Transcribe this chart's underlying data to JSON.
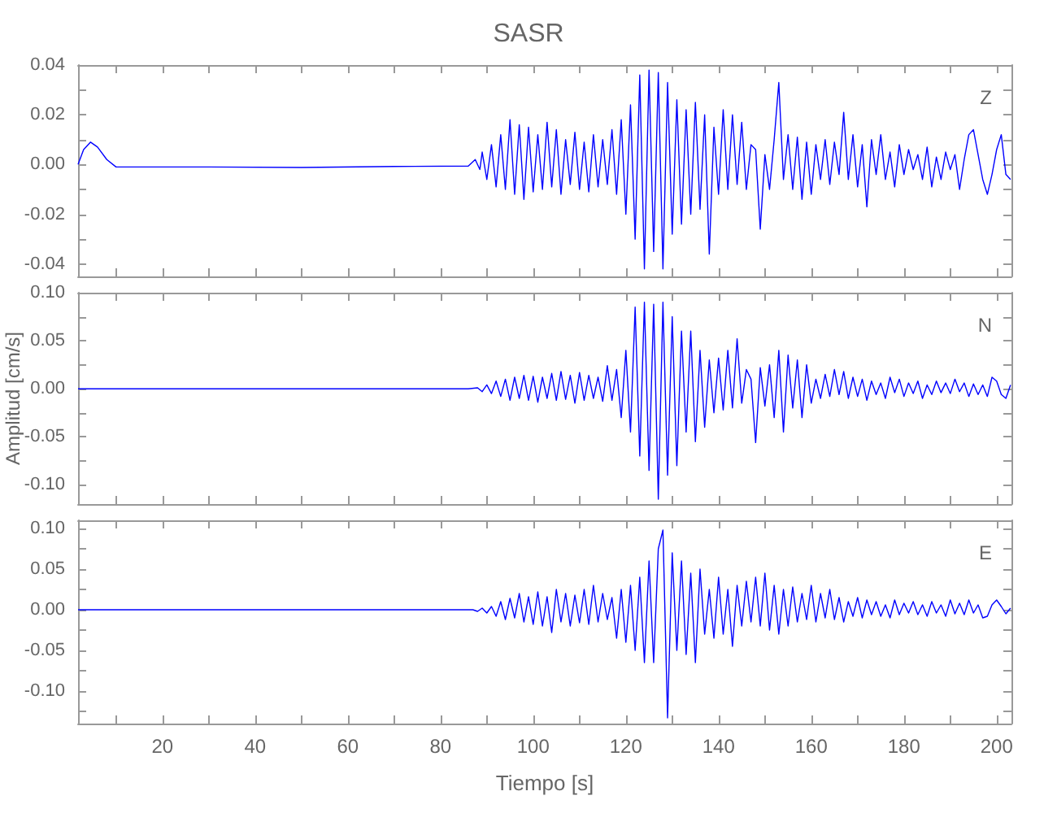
{
  "chart_data": [
    {
      "type": "line",
      "title": "SASR",
      "annotations": [
        "Z"
      ],
      "marker": "none",
      "tick_labels": "y",
      "xlim": [
        1.8,
        203.2
      ],
      "ylim": [
        -0.045,
        0.04
      ],
      "xticks": [
        {
          "value": 10,
          "label": null
        },
        {
          "value": 20,
          "label": null
        },
        {
          "value": 30,
          "label": null
        },
        {
          "value": 40,
          "label": null
        },
        {
          "value": 50,
          "label": null
        },
        {
          "value": 60,
          "label": null
        },
        {
          "value": 70,
          "label": null
        },
        {
          "value": 80,
          "label": null
        },
        {
          "value": 90,
          "label": null
        },
        {
          "value": 100,
          "label": null
        },
        {
          "value": 110,
          "label": null
        },
        {
          "value": 120,
          "label": null
        },
        {
          "value": 130,
          "label": null
        },
        {
          "value": 140,
          "label": null
        },
        {
          "value": 150,
          "label": null
        },
        {
          "value": 160,
          "label": null
        },
        {
          "value": 170,
          "label": null
        },
        {
          "value": 180,
          "label": null
        },
        {
          "value": 190,
          "label": null
        },
        {
          "value": 200,
          "label": null
        }
      ],
      "yticks": [
        {
          "value": -0.04,
          "label": "-0.04"
        },
        {
          "value": -0.03,
          "label": null
        },
        {
          "value": -0.02,
          "label": "-0.02"
        },
        {
          "value": -0.01,
          "label": null
        },
        {
          "value": 0,
          "label": "0.00"
        },
        {
          "value": 0.01,
          "label": null
        },
        {
          "value": 0.02,
          "label": "0.02"
        },
        {
          "value": 0.03,
          "label": null
        },
        {
          "value": 0.04,
          "label": "0.04"
        }
      ],
      "series": [
        {
          "color": "#0000ff",
          "x": [
            1.8,
            3,
            4.5,
            6,
            8,
            10,
            30,
            50,
            70,
            86,
            87.5,
            88.5,
            89,
            90,
            91,
            92,
            93,
            94,
            95,
            96,
            97,
            98,
            99,
            100,
            101,
            102,
            103,
            104,
            105,
            106,
            107,
            108,
            109,
            110,
            111,
            112,
            113,
            114,
            115,
            116,
            117,
            118,
            119,
            120,
            121,
            122,
            123,
            124,
            125,
            126,
            127,
            128,
            129,
            130,
            131,
            132,
            133,
            134,
            135,
            136,
            137,
            138,
            139,
            140,
            141,
            142,
            143,
            144,
            145,
            146,
            147,
            148,
            149,
            150,
            151,
            152,
            153,
            154,
            155,
            156,
            157,
            158,
            159,
            160,
            161,
            162,
            163,
            164,
            165,
            166,
            167,
            168,
            169,
            170,
            171,
            172,
            173,
            174,
            175,
            176,
            177,
            178,
            179,
            180,
            181,
            182,
            183,
            184,
            185,
            186,
            187,
            188,
            189,
            190,
            191,
            192,
            193,
            194,
            195,
            196,
            197,
            198,
            199,
            200,
            201,
            202,
            203
          ],
          "values": [
            0,
            0.006,
            0.009,
            0.007,
            0.002,
            -0.001,
            -0.001,
            -0.0012,
            -0.0008,
            -0.0006,
            0.002,
            -0.002,
            0.005,
            -0.006,
            0.008,
            -0.009,
            0.012,
            -0.01,
            0.018,
            -0.012,
            0.016,
            -0.014,
            0.015,
            -0.011,
            0.012,
            -0.01,
            0.017,
            -0.009,
            0.014,
            -0.012,
            0.01,
            -0.008,
            0.013,
            -0.01,
            0.009,
            -0.011,
            0.012,
            -0.009,
            0.01,
            -0.008,
            0.014,
            -0.012,
            0.018,
            -0.02,
            0.024,
            -0.03,
            0.036,
            -0.042,
            0.038,
            -0.035,
            0.037,
            -0.042,
            0.033,
            -0.028,
            0.026,
            -0.024,
            0.022,
            -0.02,
            0.025,
            -0.018,
            0.02,
            -0.036,
            0.015,
            -0.012,
            0.022,
            -0.01,
            0.02,
            -0.008,
            0.017,
            -0.01,
            0.008,
            0.006,
            -0.026,
            0.004,
            -0.01,
            0.01,
            0.033,
            -0.006,
            0.012,
            -0.01,
            0.011,
            -0.014,
            0.009,
            -0.012,
            0.008,
            -0.006,
            0.01,
            -0.008,
            0.009,
            -0.004,
            0.021,
            -0.006,
            0.012,
            -0.009,
            0.008,
            -0.017,
            0.01,
            -0.004,
            0.012,
            -0.006,
            0.005,
            -0.009,
            0.008,
            -0.004,
            0.006,
            -0.002,
            0.004,
            -0.006,
            0.007,
            -0.009,
            0.003,
            -0.006,
            0.005,
            -0.002,
            0.004,
            -0.01,
            0.002,
            0.012,
            0.014,
            0.004,
            -0.006,
            -0.012,
            -0.004,
            0.006,
            0.012,
            -0.004,
            -0.006
          ]
        }
      ]
    },
    {
      "type": "line",
      "ylabel": "Amplitud [cm/s]",
      "annotations": [
        "N"
      ],
      "marker": "none",
      "tick_labels": "y",
      "xlim": [
        1.8,
        203.2
      ],
      "ylim": [
        -0.12,
        0.1
      ],
      "xticks": [
        {
          "value": 10,
          "label": null
        },
        {
          "value": 20,
          "label": null
        },
        {
          "value": 30,
          "label": null
        },
        {
          "value": 40,
          "label": null
        },
        {
          "value": 50,
          "label": null
        },
        {
          "value": 60,
          "label": null
        },
        {
          "value": 70,
          "label": null
        },
        {
          "value": 80,
          "label": null
        },
        {
          "value": 90,
          "label": null
        },
        {
          "value": 100,
          "label": null
        },
        {
          "value": 110,
          "label": null
        },
        {
          "value": 120,
          "label": null
        },
        {
          "value": 130,
          "label": null
        },
        {
          "value": 140,
          "label": null
        },
        {
          "value": 150,
          "label": null
        },
        {
          "value": 160,
          "label": null
        },
        {
          "value": 170,
          "label": null
        },
        {
          "value": 180,
          "label": null
        },
        {
          "value": 190,
          "label": null
        },
        {
          "value": 200,
          "label": null
        }
      ],
      "yticks": [
        {
          "value": -0.1,
          "label": "-0.10"
        },
        {
          "value": -0.075,
          "label": null
        },
        {
          "value": -0.05,
          "label": "-0.05"
        },
        {
          "value": -0.025,
          "label": null
        },
        {
          "value": 0,
          "label": "0.00"
        },
        {
          "value": 0.025,
          "label": null
        },
        {
          "value": 0.05,
          "label": "0.05"
        },
        {
          "value": 0.075,
          "label": null
        },
        {
          "value": 0.1,
          "label": "0.10"
        }
      ],
      "series": [
        {
          "color": "#0000ff",
          "x": [
            1.8,
            30,
            60,
            86,
            88,
            89,
            90,
            91,
            92,
            93,
            94,
            95,
            96,
            97,
            98,
            99,
            100,
            101,
            102,
            103,
            104,
            105,
            106,
            107,
            108,
            109,
            110,
            111,
            112,
            113,
            114,
            115,
            116,
            117,
            118,
            119,
            120,
            121,
            122,
            123,
            124,
            125,
            126,
            127,
            128,
            129,
            130,
            131,
            132,
            133,
            134,
            135,
            136,
            137,
            138,
            139,
            140,
            141,
            142,
            143,
            144,
            145,
            146,
            147,
            148,
            149,
            150,
            151,
            152,
            153,
            154,
            155,
            156,
            157,
            158,
            159,
            160,
            161,
            162,
            163,
            164,
            165,
            166,
            167,
            168,
            169,
            170,
            171,
            172,
            173,
            174,
            175,
            176,
            177,
            178,
            179,
            180,
            181,
            182,
            183,
            184,
            185,
            186,
            187,
            188,
            189,
            190,
            191,
            192,
            193,
            194,
            195,
            196,
            197,
            198,
            199,
            200,
            201,
            202,
            203
          ],
          "values": [
            0,
            0,
            0,
            0,
            0.001,
            -0.003,
            0.004,
            -0.005,
            0.008,
            -0.008,
            0.01,
            -0.012,
            0.012,
            -0.01,
            0.014,
            -0.012,
            0.013,
            -0.014,
            0.012,
            -0.01,
            0.016,
            -0.012,
            0.018,
            -0.011,
            0.014,
            -0.015,
            0.017,
            -0.012,
            0.014,
            -0.01,
            0.012,
            -0.013,
            0.024,
            -0.012,
            0.02,
            -0.03,
            0.04,
            -0.045,
            0.085,
            -0.07,
            0.09,
            -0.085,
            0.088,
            -0.115,
            0.09,
            -0.09,
            0.075,
            -0.08,
            0.06,
            -0.045,
            0.06,
            -0.055,
            0.04,
            -0.04,
            0.03,
            -0.025,
            0.032,
            -0.022,
            0.04,
            -0.02,
            0.052,
            -0.015,
            0.02,
            0.01,
            -0.056,
            0.022,
            -0.018,
            0.025,
            -0.03,
            0.04,
            -0.045,
            0.035,
            -0.02,
            0.03,
            -0.03,
            0.025,
            -0.015,
            0.01,
            -0.01,
            0.015,
            -0.008,
            0.02,
            -0.006,
            0.018,
            -0.01,
            0.012,
            -0.008,
            0.01,
            -0.012,
            0.008,
            -0.006,
            0.006,
            -0.01,
            0.012,
            -0.004,
            0.01,
            -0.008,
            0.006,
            -0.005,
            0.008,
            -0.01,
            0.004,
            -0.006,
            0.008,
            -0.004,
            0.006,
            -0.005,
            0.01,
            -0.003,
            0.006,
            -0.008,
            0.005,
            -0.006,
            0.004,
            -0.008,
            0.012,
            0.008,
            -0.006,
            -0.01,
            0.004
          ]
        }
      ]
    },
    {
      "type": "line",
      "xlabel": "Tiempo [s]",
      "annotations": [
        "E"
      ],
      "marker": "none",
      "xlim": [
        1.8,
        203.2
      ],
      "ylim": [
        -0.14,
        0.11
      ],
      "xticks": [
        {
          "value": 10,
          "label": null
        },
        20,
        {
          "value": 30,
          "label": null
        },
        40,
        {
          "value": 50,
          "label": null
        },
        60,
        {
          "value": 70,
          "label": null
        },
        80,
        {
          "value": 90,
          "label": null
        },
        100,
        {
          "value": 110,
          "label": null
        },
        120,
        {
          "value": 130,
          "label": null
        },
        140,
        {
          "value": 150,
          "label": null
        },
        160,
        {
          "value": 170,
          "label": null
        },
        180,
        {
          "value": 190,
          "label": null
        },
        200
      ],
      "yticks": [
        {
          "value": -0.125,
          "label": null
        },
        {
          "value": -0.1,
          "label": "-0.10"
        },
        {
          "value": -0.075,
          "label": null
        },
        {
          "value": -0.05,
          "label": "-0.05"
        },
        {
          "value": -0.025,
          "label": null
        },
        {
          "value": 0,
          "label": "0.00"
        },
        {
          "value": 0.025,
          "label": null
        },
        {
          "value": 0.05,
          "label": "0.05"
        },
        {
          "value": 0.075,
          "label": null
        },
        {
          "value": 0.1,
          "label": "0.10"
        }
      ],
      "series": [
        {
          "color": "#0000ff",
          "x": [
            1.8,
            40,
            70,
            87,
            88,
            89,
            90,
            91,
            92,
            93,
            94,
            95,
            96,
            97,
            98,
            99,
            100,
            101,
            102,
            103,
            104,
            105,
            106,
            107,
            108,
            109,
            110,
            111,
            112,
            113,
            114,
            115,
            116,
            117,
            118,
            119,
            120,
            121,
            122,
            123,
            124,
            125,
            126,
            127,
            128,
            129,
            130,
            131,
            132,
            133,
            134,
            135,
            136,
            137,
            138,
            139,
            140,
            141,
            142,
            143,
            144,
            145,
            146,
            147,
            148,
            149,
            150,
            151,
            152,
            153,
            154,
            155,
            156,
            157,
            158,
            159,
            160,
            161,
            162,
            163,
            164,
            165,
            166,
            167,
            168,
            169,
            170,
            171,
            172,
            173,
            174,
            175,
            176,
            177,
            178,
            179,
            180,
            181,
            182,
            183,
            184,
            185,
            186,
            187,
            188,
            189,
            190,
            191,
            192,
            193,
            194,
            195,
            196,
            197,
            198,
            199,
            200,
            201,
            202,
            203
          ],
          "values": [
            0,
            0,
            0,
            0,
            -0.002,
            0.002,
            -0.004,
            0.004,
            -0.008,
            0.01,
            -0.012,
            0.014,
            -0.01,
            0.02,
            -0.015,
            0.016,
            -0.018,
            0.022,
            -0.02,
            0.016,
            -0.028,
            0.025,
            -0.015,
            0.02,
            -0.02,
            0.018,
            -0.016,
            0.025,
            -0.018,
            0.03,
            -0.015,
            0.02,
            -0.012,
            0.015,
            -0.035,
            0.025,
            -0.04,
            0.03,
            -0.05,
            0.04,
            -0.065,
            0.06,
            -0.065,
            0.075,
            0.098,
            -0.133,
            0.07,
            -0.05,
            0.06,
            -0.055,
            0.045,
            -0.065,
            0.05,
            -0.03,
            0.025,
            -0.035,
            0.04,
            -0.03,
            0.025,
            -0.045,
            0.03,
            -0.02,
            0.035,
            -0.015,
            0.04,
            -0.02,
            0.045,
            -0.025,
            0.03,
            -0.03,
            0.025,
            -0.02,
            0.028,
            -0.015,
            0.02,
            -0.012,
            0.03,
            -0.015,
            0.02,
            -0.01,
            0.025,
            -0.012,
            0.015,
            -0.015,
            0.01,
            -0.008,
            0.015,
            -0.01,
            0.012,
            -0.006,
            0.01,
            -0.008,
            0.006,
            -0.01,
            0.012,
            -0.006,
            0.008,
            -0.004,
            0.01,
            -0.006,
            0.006,
            -0.008,
            0.01,
            -0.004,
            0.006,
            -0.008,
            0.012,
            -0.005,
            0.008,
            -0.006,
            0.012,
            -0.004,
            0.006,
            -0.01,
            -0.008,
            0.006,
            0.012,
            0.004,
            -0.005,
            0.002
          ]
        }
      ]
    }
  ]
}
